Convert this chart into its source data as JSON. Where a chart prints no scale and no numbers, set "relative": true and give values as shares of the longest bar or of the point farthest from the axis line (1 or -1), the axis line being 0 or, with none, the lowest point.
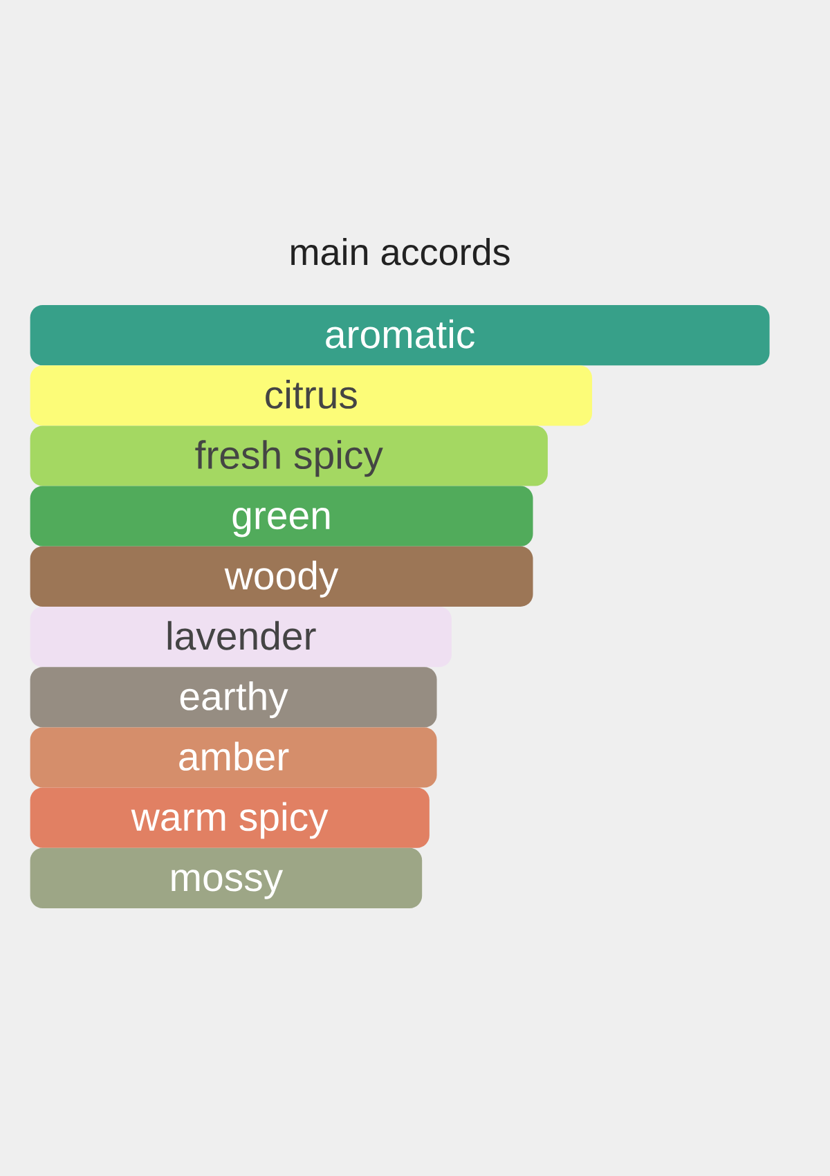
{
  "chart_data": {
    "type": "bar",
    "title": "main accords",
    "orientation": "horizontal",
    "relative": true,
    "categories": [
      "aromatic",
      "citrus",
      "fresh spicy",
      "green",
      "woody",
      "lavender",
      "earthy",
      "amber",
      "warm spicy",
      "mossy"
    ],
    "values": [
      1,
      0.76,
      0.7,
      0.68,
      0.68,
      0.57,
      0.55,
      0.55,
      0.54,
      0.53
    ],
    "colors": [
      "#37a089",
      "#fcfc78",
      "#a4d862",
      "#51ab5b",
      "#9c7656",
      "#efe0f2",
      "#968d82",
      "#d58e6b",
      "#e18063",
      "#9da686"
    ]
  }
}
